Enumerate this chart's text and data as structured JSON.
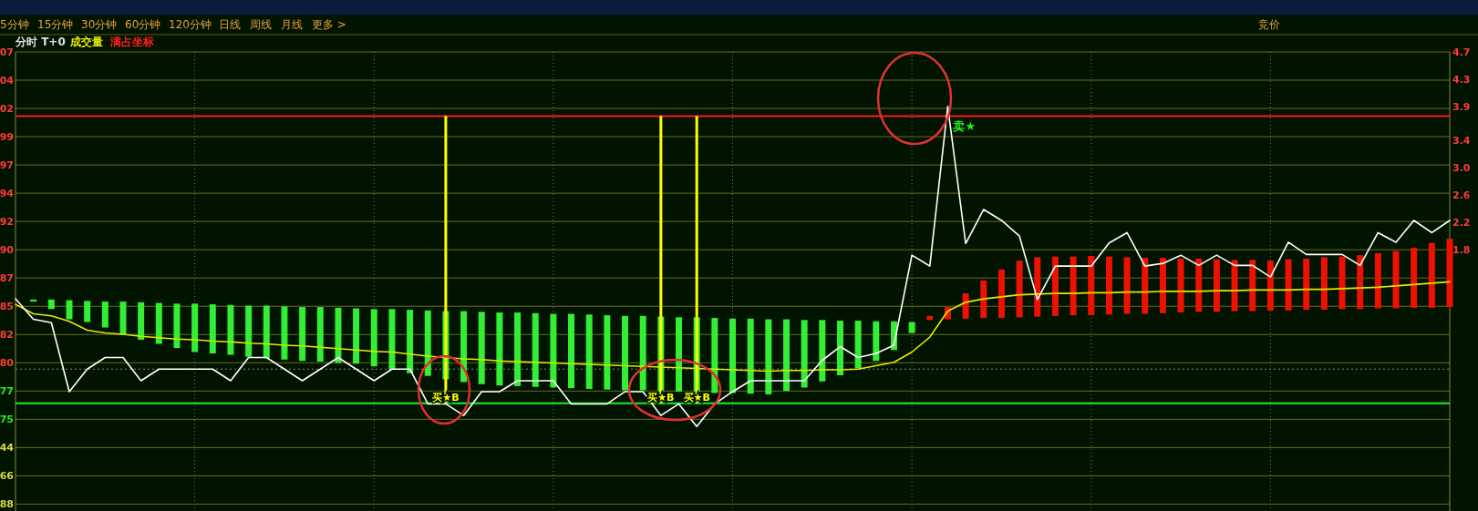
{
  "chart_data": {
    "type": "line",
    "title": "分时 T+0",
    "subtitle": "成交量",
    "annotations": [
      "满占坐标",
      "5分钟",
      "15分钟",
      "30分钟",
      "60分钟",
      "120分钟",
      "日线",
      "周线",
      "月线",
      "更多 >",
      "竞价",
      "07",
      "04",
      "02",
      "99",
      "97",
      "94",
      "92",
      "90",
      "87",
      "85",
      "82",
      "80",
      "77",
      "75",
      "44",
      "66",
      "88"
    ],
    "categories": [
      null,
      null,
      null,
      null,
      null,
      null,
      null,
      null,
      null,
      null,
      null,
      null,
      null,
      null,
      null,
      null,
      null,
      null,
      null,
      null,
      null,
      null,
      null,
      null,
      null,
      null,
      null,
      null,
      null,
      null,
      null,
      null,
      null,
      null,
      null,
      null,
      null,
      null,
      null,
      null,
      null,
      null,
      null,
      null,
      null,
      null,
      null,
      null,
      null,
      null,
      null,
      null,
      null,
      null,
      null,
      null,
      null,
      null,
      null,
      null,
      null,
      null,
      null,
      null,
      null,
      null,
      null,
      null,
      null,
      null,
      null,
      null,
      null,
      null,
      null,
      null,
      null,
      null,
      null,
      null,
      null
    ],
    "ylim": [
      -2.03,
      4.7
    ],
    "yticks": [
      4.7,
      4.3,
      3.9,
      3.4,
      {
        "value": 3,
        "label": "3.0"
      },
      2.6,
      2.2,
      1.8
    ],
    "tick_labels": "y",
    "grid": true,
    "ref_lines": [
      {
        "axis": "y",
        "value": 3.76,
        "color": "#ff1a1a"
      },
      {
        "axis": "y",
        "value": -0.45,
        "color": "#22ee22"
      },
      {
        "axis": "y",
        "value": 0.05,
        "color": "#8a8a8a",
        "line_style": "dotted"
      }
    ],
    "series": [
      {
        "type": "bar",
        "color": "#33ee33",
        "base": [
          null,
          1.04,
          0.93,
          0.78,
          0.74,
          0.66,
          0.56,
          0.48,
          0.42,
          0.36,
          0.3,
          0.28,
          0.26,
          0.23,
          0.21,
          0.19,
          0.17,
          0.16,
          0.14,
          0.13,
          0.09,
          0.04,
          -0.01,
          -0.05,
          -0.1,
          -0.14,
          -0.17,
          -0.19,
          -0.2,
          -0.21,
          -0.22,
          -0.23,
          -0.24,
          -0.25,
          -0.26,
          -0.26,
          -0.27,
          -0.28,
          -0.29,
          -0.3,
          -0.3,
          -0.31,
          -0.32,
          -0.27,
          -0.22,
          -0.13,
          -0.04,
          0.06,
          0.17,
          0.33,
          0.58,
          null,
          null,
          null,
          null,
          null,
          null,
          null,
          null,
          null,
          null,
          null,
          null,
          null,
          null,
          null,
          null,
          null,
          null,
          null,
          null,
          null,
          null,
          null,
          null,
          null,
          null,
          null,
          null,
          null,
          null
        ],
        "values": [
          null,
          0.03,
          0.14,
          0.28,
          0.31,
          0.38,
          0.48,
          0.55,
          0.6,
          0.65,
          0.71,
          0.72,
          0.73,
          0.75,
          0.77,
          0.78,
          0.79,
          0.8,
          0.81,
          0.81,
          0.84,
          0.89,
          0.93,
          0.96,
          1.0,
          1.04,
          1.06,
          1.07,
          1.08,
          1.08,
          1.08,
          1.09,
          1.09,
          1.09,
          1.09,
          1.09,
          1.09,
          1.09,
          1.1,
          1.1,
          1.09,
          1.1,
          1.1,
          1.05,
          0.99,
          0.9,
          0.8,
          0.7,
          0.58,
          0.42,
          0.16,
          null,
          null,
          null,
          null,
          null,
          null,
          null,
          null,
          null,
          null,
          null,
          null,
          null,
          null,
          null,
          null,
          null,
          null,
          null,
          null,
          null,
          null,
          null,
          null,
          null,
          null,
          null,
          null,
          null,
          null
        ]
      },
      {
        "type": "bar",
        "color": "#ee1100",
        "base": [
          null,
          null,
          null,
          null,
          null,
          null,
          null,
          null,
          null,
          null,
          null,
          null,
          null,
          null,
          null,
          null,
          null,
          null,
          null,
          null,
          null,
          null,
          null,
          null,
          null,
          null,
          null,
          null,
          null,
          null,
          null,
          null,
          null,
          null,
          null,
          null,
          null,
          null,
          null,
          null,
          null,
          null,
          null,
          null,
          null,
          null,
          null,
          null,
          null,
          null,
          null,
          0.77,
          0.78,
          0.79,
          0.8,
          0.8,
          0.81,
          0.82,
          0.83,
          0.84,
          0.84,
          0.85,
          0.86,
          0.86,
          0.87,
          0.88,
          0.89,
          0.89,
          0.9,
          0.9,
          0.91,
          0.91,
          0.92,
          0.92,
          0.93,
          0.93,
          0.94,
          0.94,
          0.95,
          0.95,
          0.96
        ],
        "values": [
          null,
          null,
          null,
          null,
          null,
          null,
          null,
          null,
          null,
          null,
          null,
          null,
          null,
          null,
          null,
          null,
          null,
          null,
          null,
          null,
          null,
          null,
          null,
          null,
          null,
          null,
          null,
          null,
          null,
          null,
          null,
          null,
          null,
          null,
          null,
          null,
          null,
          null,
          null,
          null,
          null,
          null,
          null,
          null,
          null,
          null,
          null,
          null,
          null,
          null,
          null,
          0.06,
          0.18,
          0.37,
          0.55,
          0.71,
          0.83,
          0.87,
          0.87,
          0.86,
          0.87,
          0.85,
          0.83,
          0.82,
          0.81,
          0.79,
          0.78,
          0.77,
          0.75,
          0.75,
          0.73,
          0.75,
          0.75,
          0.77,
          0.77,
          0.79,
          0.81,
          0.84,
          0.88,
          0.95,
          1.0
        ]
      },
      {
        "type": "bar",
        "color": "#ffff00",
        "base": [
          null,
          null,
          null,
          null,
          null,
          null,
          null,
          null,
          null,
          null,
          null,
          null,
          null,
          null,
          null,
          null,
          null,
          null,
          null,
          null,
          null,
          null,
          null,
          null,
          3.76,
          null,
          null,
          null,
          null,
          null,
          null,
          null,
          null,
          null,
          null,
          null,
          3.76,
          null,
          3.76,
          null,
          null,
          null,
          null,
          null,
          null,
          null,
          null,
          null,
          null,
          null,
          null,
          null,
          null,
          null,
          null,
          null,
          null,
          null,
          null,
          null,
          null,
          null,
          null,
          null,
          null,
          null,
          null,
          null,
          null,
          null,
          null,
          null,
          null,
          null,
          null,
          null,
          null,
          null,
          null,
          null,
          null
        ],
        "values": [
          null,
          null,
          null,
          null,
          null,
          null,
          null,
          null,
          null,
          null,
          null,
          null,
          null,
          null,
          null,
          null,
          null,
          null,
          null,
          null,
          null,
          null,
          null,
          null,
          -4.21,
          null,
          null,
          null,
          null,
          null,
          null,
          null,
          null,
          null,
          null,
          null,
          -4.21,
          null,
          -4.21,
          null,
          null,
          null,
          null,
          null,
          null,
          null,
          null,
          null,
          null,
          null,
          null,
          null,
          null,
          null,
          null,
          null,
          null,
          null,
          null,
          null,
          null,
          null,
          null,
          null,
          null,
          null,
          null,
          null,
          null,
          null,
          null,
          null,
          null,
          null,
          null,
          null,
          null,
          null,
          null,
          null,
          null
        ],
        "value_labels": [
          null,
          null,
          null,
          null,
          null,
          null,
          null,
          null,
          null,
          null,
          null,
          null,
          null,
          null,
          null,
          null,
          null,
          null,
          null,
          null,
          null,
          null,
          null,
          null,
          "买★B",
          null,
          null,
          null,
          null,
          null,
          null,
          null,
          null,
          null,
          null,
          null,
          "买★B",
          null,
          "买★B",
          null,
          null,
          null,
          null,
          null,
          null,
          null,
          null,
          null,
          null,
          null,
          null,
          null,
          null,
          null,
          null,
          null,
          null,
          null,
          null,
          null,
          null,
          null,
          null,
          null,
          null,
          null,
          null,
          null,
          null,
          null,
          null,
          null,
          null,
          null,
          null,
          null,
          null,
          null,
          null,
          null,
          null
        ]
      },
      {
        "color": "#e8e800",
        "values": [
          1.0,
          0.86,
          0.83,
          0.75,
          0.62,
          0.58,
          0.56,
          0.53,
          0.51,
          0.49,
          0.48,
          0.46,
          0.45,
          0.43,
          0.42,
          0.4,
          0.39,
          0.37,
          0.35,
          0.33,
          0.31,
          0.3,
          0.27,
          0.24,
          0.22,
          0.2,
          0.19,
          0.17,
          0.16,
          0.15,
          0.14,
          0.13,
          0.12,
          0.11,
          0.1,
          0.09,
          0.08,
          0.07,
          0.06,
          0.05,
          0.04,
          0.03,
          0.02,
          0.03,
          0.03,
          0.04,
          0.04,
          0.05,
          0.1,
          0.15,
          0.3,
          0.52,
          0.9,
          1.03,
          1.08,
          1.11,
          1.14,
          1.15,
          1.16,
          1.16,
          1.17,
          1.17,
          1.18,
          1.18,
          1.19,
          1.19,
          1.19,
          1.2,
          1.2,
          1.21,
          1.21,
          1.21,
          1.22,
          1.22,
          1.23,
          1.24,
          1.25,
          1.27,
          1.29,
          1.31,
          1.33
        ]
      },
      {
        "color": "#ffffff",
        "values": [
          1.08,
          0.78,
          0.73,
          -0.28,
          0.05,
          0.22,
          0.22,
          -0.12,
          0.05,
          0.05,
          0.05,
          0.05,
          -0.12,
          0.22,
          0.22,
          0.05,
          -0.12,
          0.05,
          0.22,
          0.05,
          -0.12,
          0.05,
          0.05,
          -0.46,
          -0.46,
          -0.63,
          -0.28,
          -0.28,
          -0.12,
          -0.12,
          -0.12,
          -0.46,
          -0.46,
          -0.46,
          -0.28,
          -0.28,
          -0.63,
          -0.46,
          -0.79,
          -0.46,
          -0.28,
          -0.12,
          -0.12,
          -0.12,
          -0.12,
          0.18,
          0.38,
          0.22,
          0.28,
          0.4,
          1.72,
          1.56,
          3.9,
          1.89,
          2.39,
          2.23,
          2.0,
          1.07,
          1.56,
          1.56,
          1.56,
          1.9,
          2.05,
          1.56,
          1.6,
          1.72,
          1.57,
          1.72,
          1.57,
          1.57,
          1.4,
          1.91,
          1.73,
          1.73,
          1.73,
          1.57,
          2.05,
          1.91,
          2.23,
          2.05,
          2.23
        ],
        "value_labels": [
          null,
          null,
          null,
          null,
          null,
          null,
          null,
          null,
          null,
          null,
          null,
          null,
          null,
          null,
          null,
          null,
          null,
          null,
          null,
          null,
          null,
          null,
          null,
          null,
          null,
          null,
          null,
          null,
          null,
          null,
          null,
          null,
          null,
          null,
          null,
          null,
          null,
          null,
          null,
          null,
          null,
          null,
          null,
          null,
          null,
          null,
          null,
          null,
          null,
          null,
          null,
          null,
          "卖★",
          null,
          null,
          null,
          null,
          null,
          null,
          null,
          null,
          null,
          null,
          null,
          null,
          null,
          null,
          null,
          null,
          null,
          null,
          null,
          null,
          null,
          null,
          null,
          null,
          null,
          null,
          null,
          null
        ]
      }
    ]
  }
}
